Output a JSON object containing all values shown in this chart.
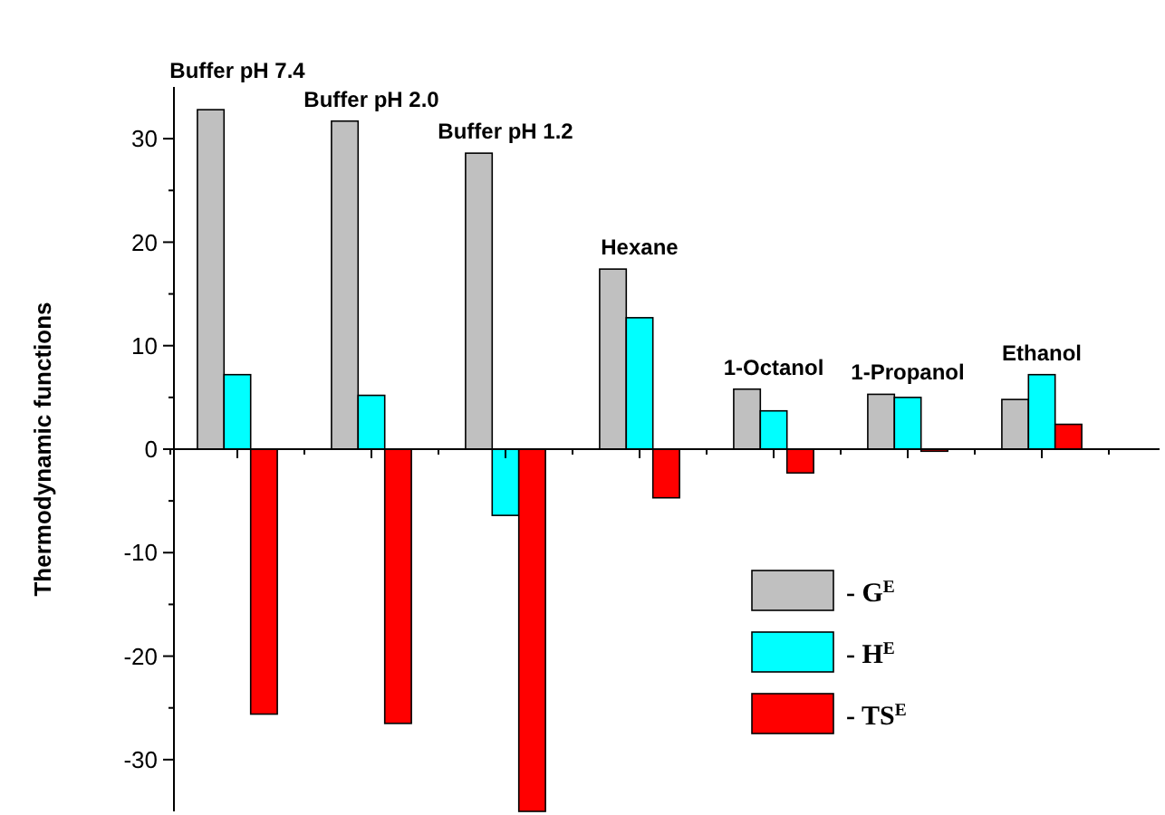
{
  "chart_data": {
    "type": "bar",
    "ylabel": "Thermodynamic functions",
    "categories": [
      "Buffer pH 7.4",
      "Buffer pH 2.0",
      "Buffer pH 1.2",
      "Hexane",
      "1-Octanol",
      "1-Propanol",
      "Ethanol"
    ],
    "series": [
      {
        "name": "- G$^{E}$",
        "color": "#c0c0c0",
        "values": [
          32.8,
          31.7,
          28.6,
          17.4,
          5.8,
          5.3,
          4.8
        ]
      },
      {
        "name": "- H$^{E}$",
        "color": "#00ffff",
        "values": [
          7.2,
          5.2,
          -6.4,
          12.7,
          3.7,
          5.0,
          7.2
        ]
      },
      {
        "name": "- TS$^{E}$",
        "color": "#ff0000",
        "values": [
          -25.6,
          -26.5,
          -35,
          -4.7,
          -2.3,
          -0.2,
          2.4
        ]
      }
    ],
    "ylim": [
      -35,
      35
    ],
    "yticks": [
      -30,
      {
        "value": -25,
        "label": null
      },
      -20,
      {
        "value": -15,
        "label": null
      },
      -10,
      {
        "value": -5,
        "label": null
      },
      0,
      {
        "value": 5,
        "label": null
      },
      10,
      {
        "value": 15,
        "label": null
      },
      20,
      {
        "value": 25,
        "label": null
      },
      30
    ],
    "legend": "bottom right"
  }
}
